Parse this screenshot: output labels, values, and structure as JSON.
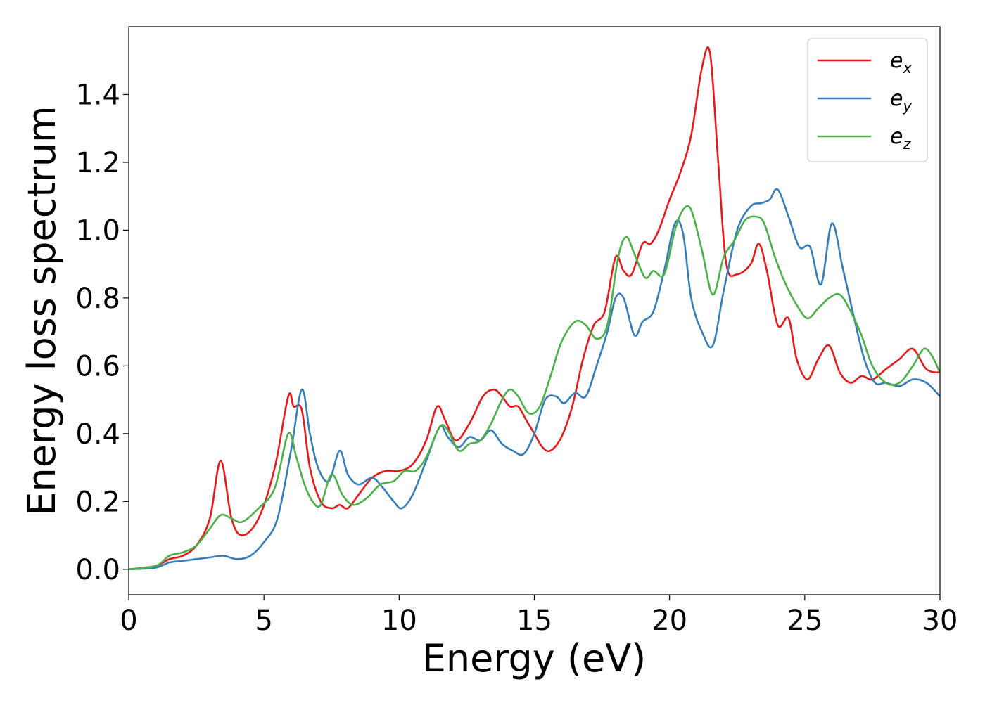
{
  "chart_data": {
    "type": "line",
    "xlabel": "Energy (eV)",
    "ylabel": "Energy loss spectrum",
    "xlim": [
      0,
      30
    ],
    "ylim": [
      -0.075,
      1.6
    ],
    "xticks": [
      0,
      5,
      10,
      15,
      20,
      25,
      30
    ],
    "xtick_labels": [
      "0",
      "5",
      "10",
      "15",
      "20",
      "25",
      "30"
    ],
    "yticks": [
      0.0,
      0.2,
      0.4,
      0.6,
      0.8,
      1.0,
      1.2,
      1.4
    ],
    "ytick_labels": [
      "0.0",
      "0.2",
      "0.4",
      "0.6",
      "0.8",
      "1.0",
      "1.2",
      "1.4"
    ],
    "grid": false,
    "legend_position": "top-right",
    "series": [
      {
        "name": "e_x",
        "legend_base": "e",
        "legend_sub": "x",
        "color": "#e41a1c",
        "x": [
          0,
          1,
          1.5,
          2,
          2.5,
          3,
          3.4,
          3.8,
          4.2,
          4.8,
          5.4,
          5.9,
          6.1,
          6.4,
          6.7,
          7.1,
          7.5,
          7.8,
          8.1,
          8.5,
          9.0,
          9.5,
          10.0,
          10.5,
          11.0,
          11.4,
          11.7,
          12.1,
          12.6,
          13.1,
          13.5,
          13.8,
          14.1,
          14.4,
          14.7,
          15.0,
          15.3,
          15.6,
          16.0,
          16.4,
          16.8,
          17.2,
          17.6,
          18.0,
          18.3,
          18.6,
          19.0,
          19.3,
          19.6,
          20.0,
          20.4,
          20.8,
          21.2,
          21.5,
          21.8,
          22.1,
          22.5,
          23.0,
          23.3,
          23.6,
          24.0,
          24.4,
          24.7,
          25.1,
          25.5,
          25.9,
          26.3,
          26.7,
          27.1,
          27.5,
          28.0,
          28.5,
          29.0,
          29.5,
          30.0
        ],
        "y": [
          0.0,
          0.01,
          0.03,
          0.04,
          0.07,
          0.15,
          0.32,
          0.15,
          0.1,
          0.15,
          0.3,
          0.51,
          0.48,
          0.47,
          0.3,
          0.2,
          0.18,
          0.19,
          0.18,
          0.22,
          0.27,
          0.29,
          0.29,
          0.31,
          0.38,
          0.48,
          0.44,
          0.38,
          0.43,
          0.51,
          0.53,
          0.51,
          0.48,
          0.48,
          0.44,
          0.4,
          0.36,
          0.35,
          0.39,
          0.48,
          0.62,
          0.72,
          0.76,
          0.92,
          0.88,
          0.87,
          0.96,
          0.96,
          1.0,
          1.09,
          1.17,
          1.28,
          1.48,
          1.52,
          1.2,
          0.9,
          0.87,
          0.9,
          0.96,
          0.88,
          0.72,
          0.74,
          0.62,
          0.56,
          0.62,
          0.66,
          0.58,
          0.55,
          0.57,
          0.56,
          0.59,
          0.62,
          0.65,
          0.59,
          0.58
        ]
      },
      {
        "name": "e_y",
        "legend_base": "e",
        "legend_sub": "y",
        "color": "#377eb8",
        "x": [
          0,
          1,
          1.5,
          2,
          2.5,
          3,
          3.5,
          4.0,
          4.5,
          5.0,
          5.5,
          6.0,
          6.4,
          6.7,
          7.0,
          7.4,
          7.8,
          8.1,
          8.5,
          9.0,
          9.4,
          9.8,
          10.1,
          10.5,
          11.0,
          11.5,
          11.8,
          12.2,
          12.6,
          13.0,
          13.4,
          13.8,
          14.2,
          14.6,
          15.0,
          15.4,
          15.8,
          16.1,
          16.5,
          16.9,
          17.3,
          17.7,
          18.0,
          18.3,
          18.7,
          19.0,
          19.4,
          19.8,
          20.2,
          20.5,
          20.8,
          21.2,
          21.6,
          22.0,
          22.5,
          23.0,
          23.4,
          23.7,
          24.0,
          24.4,
          24.8,
          25.2,
          25.6,
          26.0,
          26.4,
          26.8,
          27.2,
          27.6,
          28.0,
          28.5,
          29.0,
          29.5,
          30.0
        ],
        "y": [
          0.0,
          0.005,
          0.02,
          0.025,
          0.03,
          0.035,
          0.04,
          0.03,
          0.04,
          0.08,
          0.15,
          0.35,
          0.53,
          0.4,
          0.3,
          0.26,
          0.35,
          0.28,
          0.25,
          0.27,
          0.24,
          0.2,
          0.18,
          0.22,
          0.32,
          0.42,
          0.39,
          0.36,
          0.39,
          0.38,
          0.41,
          0.37,
          0.35,
          0.34,
          0.4,
          0.5,
          0.51,
          0.49,
          0.52,
          0.51,
          0.6,
          0.7,
          0.8,
          0.8,
          0.69,
          0.73,
          0.76,
          0.88,
          1.02,
          0.99,
          0.8,
          0.7,
          0.66,
          0.82,
          1.0,
          1.07,
          1.08,
          1.09,
          1.12,
          1.04,
          0.95,
          0.95,
          0.84,
          1.02,
          0.89,
          0.75,
          0.62,
          0.55,
          0.55,
          0.54,
          0.56,
          0.55,
          0.51
        ]
      },
      {
        "name": "e_z",
        "legend_base": "e",
        "legend_sub": "z",
        "color": "#4daf4a",
        "x": [
          0,
          1,
          1.5,
          2,
          2.5,
          3,
          3.4,
          3.8,
          4.2,
          4.8,
          5.4,
          5.9,
          6.2,
          6.5,
          6.8,
          7.1,
          7.5,
          7.9,
          8.3,
          8.8,
          9.3,
          9.8,
          10.2,
          10.6,
          11.0,
          11.5,
          11.8,
          12.2,
          12.6,
          13.0,
          13.4,
          13.8,
          14.1,
          14.4,
          14.8,
          15.2,
          15.6,
          16.0,
          16.5,
          16.9,
          17.3,
          17.7,
          18.1,
          18.4,
          18.7,
          19.1,
          19.4,
          19.8,
          20.2,
          20.5,
          20.8,
          21.2,
          21.6,
          22.0,
          22.4,
          22.8,
          23.2,
          23.5,
          23.9,
          24.3,
          24.7,
          25.1,
          25.5,
          25.9,
          26.3,
          26.7,
          27.1,
          27.5,
          28.0,
          28.5,
          29.0,
          29.4,
          29.7,
          30.0
        ],
        "y": [
          0.0,
          0.01,
          0.04,
          0.05,
          0.07,
          0.12,
          0.16,
          0.15,
          0.14,
          0.18,
          0.24,
          0.4,
          0.33,
          0.25,
          0.2,
          0.19,
          0.28,
          0.22,
          0.19,
          0.21,
          0.25,
          0.26,
          0.29,
          0.29,
          0.33,
          0.42,
          0.41,
          0.35,
          0.37,
          0.38,
          0.43,
          0.5,
          0.53,
          0.51,
          0.46,
          0.48,
          0.57,
          0.67,
          0.73,
          0.72,
          0.68,
          0.72,
          0.92,
          0.98,
          0.93,
          0.86,
          0.88,
          0.87,
          1.0,
          1.06,
          1.06,
          0.94,
          0.81,
          0.92,
          0.97,
          1.03,
          1.04,
          1.02,
          0.92,
          0.84,
          0.78,
          0.74,
          0.77,
          0.8,
          0.81,
          0.76,
          0.69,
          0.6,
          0.55,
          0.55,
          0.6,
          0.65,
          0.63,
          0.58
        ]
      }
    ]
  }
}
